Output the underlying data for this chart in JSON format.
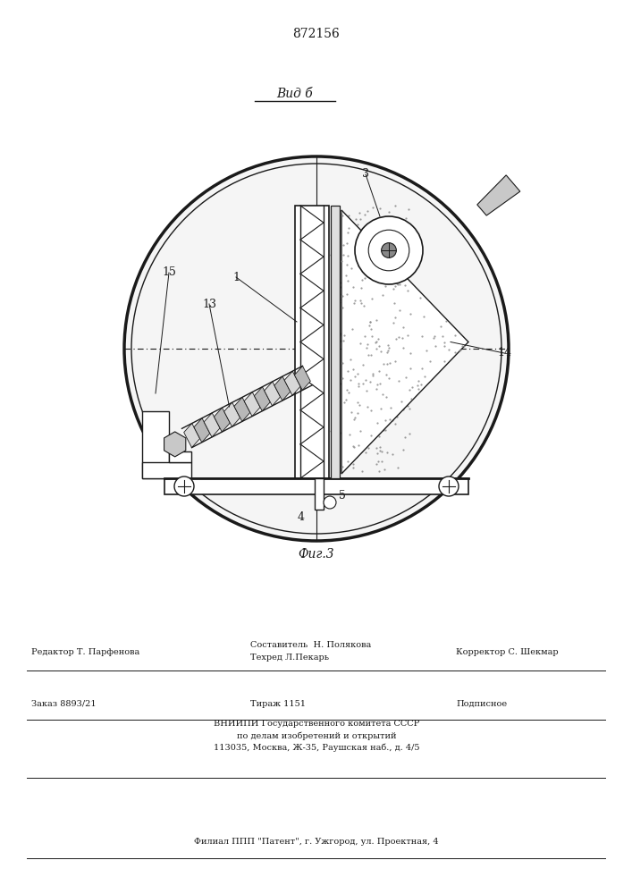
{
  "patent_number": "872156",
  "view_label": "Вид б",
  "fig_label": "Фиг.3",
  "bg_color": "#ffffff",
  "line_color": "#1a1a1a",
  "footer": {
    "editor": "Редактор Т. Парфенова",
    "composer_line1": "Составитель  Н. Полякова",
    "composer_line2": "Техред Л.Пекарь",
    "corrector": "Корректор С. Шекмар",
    "order": "Заказ 8893/21",
    "tirazh": "Тираж 1151",
    "podpisnoe": "Подписное",
    "vniipи1": "ВНИИПИ Государственного комитета СССР",
    "vniipи2": "по делам изобретений и открытий",
    "vniipи3": "113035, Москва, Ж-35, Раушская наб., д. 4/5",
    "filial": "Филиал ППП \"Патент\", г. Ужгород, ул. Проектная, 4"
  }
}
